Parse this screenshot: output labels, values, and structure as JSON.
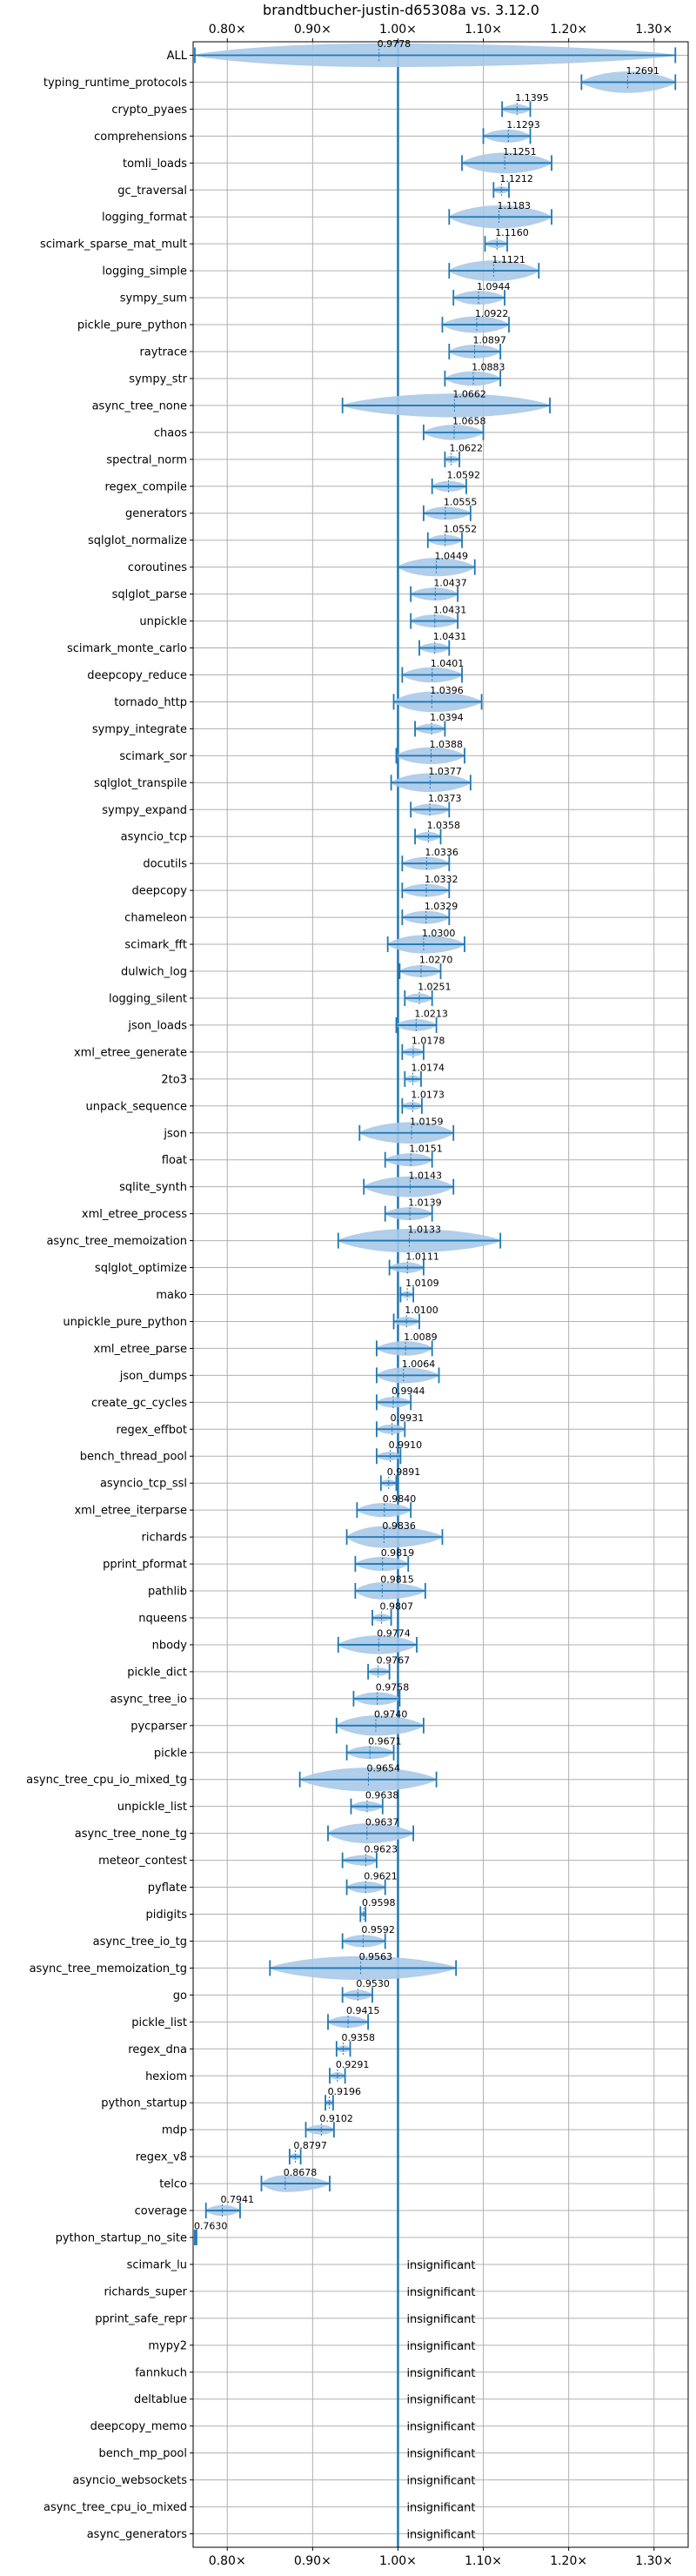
{
  "chart_data": {
    "type": "violin",
    "title": "brandtbucher-justin-d65308a vs. 3.12.0",
    "xlabel": "",
    "ylabel": "",
    "xlim": [
      0.76,
      1.34
    ],
    "x_ticks": [
      0.8,
      0.9,
      1.0,
      1.1,
      1.2,
      1.3
    ],
    "x_tick_labels": [
      "0.80×",
      "0.90×",
      "1.00×",
      "1.10×",
      "1.20×",
      "1.30×"
    ],
    "reference_line": 1.0,
    "grid": true,
    "colors": {
      "violin": "#a9c9e8",
      "whisker": "#1f77b4",
      "reference": "#1f77b4"
    },
    "insignificant_label": "insignificant",
    "benchmarks": [
      {
        "name": "ALL",
        "median": 0.9778,
        "min": 0.762,
        "max": 1.325,
        "label": "0.9778"
      },
      {
        "name": "typing_runtime_protocols",
        "median": 1.2691,
        "min": 1.215,
        "max": 1.325,
        "label": "1.2691"
      },
      {
        "name": "crypto_pyaes",
        "median": 1.1395,
        "min": 1.122,
        "max": 1.155,
        "label": "1.1395"
      },
      {
        "name": "comprehensions",
        "median": 1.1293,
        "min": 1.1,
        "max": 1.155,
        "label": "1.1293"
      },
      {
        "name": "tomli_loads",
        "median": 1.1251,
        "min": 1.075,
        "max": 1.18,
        "label": "1.1251"
      },
      {
        "name": "gc_traversal",
        "median": 1.1212,
        "min": 1.112,
        "max": 1.13,
        "label": "1.1212"
      },
      {
        "name": "logging_format",
        "median": 1.1183,
        "min": 1.06,
        "max": 1.18,
        "label": "1.1183"
      },
      {
        "name": "scimark_sparse_mat_mult",
        "median": 1.116,
        "min": 1.102,
        "max": 1.128,
        "label": "1.1160"
      },
      {
        "name": "logging_simple",
        "median": 1.1121,
        "min": 1.06,
        "max": 1.165,
        "label": "1.1121"
      },
      {
        "name": "sympy_sum",
        "median": 1.0944,
        "min": 1.065,
        "max": 1.125,
        "label": "1.0944"
      },
      {
        "name": "pickle_pure_python",
        "median": 1.0922,
        "min": 1.052,
        "max": 1.13,
        "label": "1.0922"
      },
      {
        "name": "raytrace",
        "median": 1.0897,
        "min": 1.06,
        "max": 1.12,
        "label": "1.0897"
      },
      {
        "name": "sympy_str",
        "median": 1.0883,
        "min": 1.055,
        "max": 1.12,
        "label": "1.0883"
      },
      {
        "name": "async_tree_none",
        "median": 1.0662,
        "min": 0.935,
        "max": 1.178,
        "label": "1.0662"
      },
      {
        "name": "chaos",
        "median": 1.0658,
        "min": 1.03,
        "max": 1.1,
        "label": "1.0658"
      },
      {
        "name": "spectral_norm",
        "median": 1.0622,
        "min": 1.055,
        "max": 1.072,
        "label": "1.0622"
      },
      {
        "name": "regex_compile",
        "median": 1.0592,
        "min": 1.04,
        "max": 1.08,
        "label": "1.0592"
      },
      {
        "name": "generators",
        "median": 1.0555,
        "min": 1.03,
        "max": 1.085,
        "label": "1.0555"
      },
      {
        "name": "sqlglot_normalize",
        "median": 1.0552,
        "min": 1.035,
        "max": 1.075,
        "label": "1.0552"
      },
      {
        "name": "coroutines",
        "median": 1.0449,
        "min": 1.0,
        "max": 1.09,
        "label": "1.0449"
      },
      {
        "name": "sqlglot_parse",
        "median": 1.0437,
        "min": 1.015,
        "max": 1.07,
        "label": "1.0437"
      },
      {
        "name": "unpickle",
        "median": 1.0431,
        "min": 1.015,
        "max": 1.07,
        "label": "1.0431"
      },
      {
        "name": "scimark_monte_carlo",
        "median": 1.0431,
        "min": 1.025,
        "max": 1.06,
        "label": "1.0431"
      },
      {
        "name": "deepcopy_reduce",
        "median": 1.0401,
        "min": 1.005,
        "max": 1.075,
        "label": "1.0401"
      },
      {
        "name": "tornado_http",
        "median": 1.0396,
        "min": 0.995,
        "max": 1.098,
        "label": "1.0396"
      },
      {
        "name": "sympy_integrate",
        "median": 1.0394,
        "min": 1.02,
        "max": 1.055,
        "label": "1.0394"
      },
      {
        "name": "scimark_sor",
        "median": 1.0388,
        "min": 0.998,
        "max": 1.078,
        "label": "1.0388"
      },
      {
        "name": "sqlglot_transpile",
        "median": 1.0377,
        "min": 0.992,
        "max": 1.085,
        "label": "1.0377"
      },
      {
        "name": "sympy_expand",
        "median": 1.0373,
        "min": 1.015,
        "max": 1.06,
        "label": "1.0373"
      },
      {
        "name": "asyncio_tcp",
        "median": 1.0358,
        "min": 1.02,
        "max": 1.05,
        "label": "1.0358"
      },
      {
        "name": "docutils",
        "median": 1.0336,
        "min": 1.005,
        "max": 1.06,
        "label": "1.0336"
      },
      {
        "name": "deepcopy",
        "median": 1.0332,
        "min": 1.005,
        "max": 1.06,
        "label": "1.0332"
      },
      {
        "name": "chameleon",
        "median": 1.0329,
        "min": 1.005,
        "max": 1.06,
        "label": "1.0329"
      },
      {
        "name": "scimark_fft",
        "median": 1.03,
        "min": 0.988,
        "max": 1.078,
        "label": "1.0300"
      },
      {
        "name": "dulwich_log",
        "median": 1.027,
        "min": 1.002,
        "max": 1.05,
        "label": "1.0270"
      },
      {
        "name": "logging_silent",
        "median": 1.0251,
        "min": 1.008,
        "max": 1.04,
        "label": "1.0251"
      },
      {
        "name": "json_loads",
        "median": 1.0213,
        "min": 0.998,
        "max": 1.045,
        "label": "1.0213"
      },
      {
        "name": "xml_etree_generate",
        "median": 1.0178,
        "min": 1.005,
        "max": 1.03,
        "label": "1.0178"
      },
      {
        "name": "2to3",
        "median": 1.0174,
        "min": 1.008,
        "max": 1.027,
        "label": "1.0174"
      },
      {
        "name": "unpack_sequence",
        "median": 1.0173,
        "min": 1.005,
        "max": 1.028,
        "label": "1.0173"
      },
      {
        "name": "json",
        "median": 1.0159,
        "min": 0.955,
        "max": 1.065,
        "label": "1.0159"
      },
      {
        "name": "float",
        "median": 1.0151,
        "min": 0.985,
        "max": 1.04,
        "label": "1.0151"
      },
      {
        "name": "sqlite_synth",
        "median": 1.0143,
        "min": 0.96,
        "max": 1.065,
        "label": "1.0143"
      },
      {
        "name": "xml_etree_process",
        "median": 1.0139,
        "min": 0.985,
        "max": 1.04,
        "label": "1.0139"
      },
      {
        "name": "async_tree_memoization",
        "median": 1.0133,
        "min": 0.93,
        "max": 1.12,
        "label": "1.0133"
      },
      {
        "name": "sqlglot_optimize",
        "median": 1.0111,
        "min": 0.99,
        "max": 1.03,
        "label": "1.0111"
      },
      {
        "name": "mako",
        "median": 1.0109,
        "min": 1.003,
        "max": 1.018,
        "label": "1.0109"
      },
      {
        "name": "unpickle_pure_python",
        "median": 1.01,
        "min": 0.995,
        "max": 1.025,
        "label": "1.0100"
      },
      {
        "name": "xml_etree_parse",
        "median": 1.0089,
        "min": 0.975,
        "max": 1.04,
        "label": "1.0089"
      },
      {
        "name": "json_dumps",
        "median": 1.0064,
        "min": 0.975,
        "max": 1.048,
        "label": "1.0064"
      },
      {
        "name": "create_gc_cycles",
        "median": 0.9944,
        "min": 0.975,
        "max": 1.015,
        "label": "0.9944"
      },
      {
        "name": "regex_effbot",
        "median": 0.9931,
        "min": 0.975,
        "max": 1.008,
        "label": "0.9931"
      },
      {
        "name": "bench_thread_pool",
        "median": 0.991,
        "min": 0.975,
        "max": 1.003,
        "label": "0.9910"
      },
      {
        "name": "asyncio_tcp_ssl",
        "median": 0.9891,
        "min": 0.98,
        "max": 0.998,
        "label": "0.9891"
      },
      {
        "name": "xml_etree_iterparse",
        "median": 0.984,
        "min": 0.952,
        "max": 1.015,
        "label": "0.9840"
      },
      {
        "name": "richards",
        "median": 0.9836,
        "min": 0.94,
        "max": 1.052,
        "label": "0.9836"
      },
      {
        "name": "pprint_pformat",
        "median": 0.9819,
        "min": 0.95,
        "max": 1.012,
        "label": "0.9819"
      },
      {
        "name": "pathlib",
        "median": 0.9815,
        "min": 0.95,
        "max": 1.032,
        "label": "0.9815"
      },
      {
        "name": "nqueens",
        "median": 0.9807,
        "min": 0.97,
        "max": 0.992,
        "label": "0.9807"
      },
      {
        "name": "nbody",
        "median": 0.9774,
        "min": 0.93,
        "max": 1.022,
        "label": "0.9774"
      },
      {
        "name": "pickle_dict",
        "median": 0.9767,
        "min": 0.965,
        "max": 0.99,
        "label": "0.9767"
      },
      {
        "name": "async_tree_io",
        "median": 0.9758,
        "min": 0.948,
        "max": 1.002,
        "label": "0.9758"
      },
      {
        "name": "pycparser",
        "median": 0.974,
        "min": 0.928,
        "max": 1.03,
        "label": "0.9740"
      },
      {
        "name": "pickle",
        "median": 0.9671,
        "min": 0.94,
        "max": 0.995,
        "label": "0.9671"
      },
      {
        "name": "async_tree_cpu_io_mixed_tg",
        "median": 0.9654,
        "min": 0.885,
        "max": 1.045,
        "label": "0.9654"
      },
      {
        "name": "unpickle_list",
        "median": 0.9638,
        "min": 0.945,
        "max": 0.982,
        "label": "0.9638"
      },
      {
        "name": "async_tree_none_tg",
        "median": 0.9637,
        "min": 0.918,
        "max": 1.018,
        "label": "0.9637"
      },
      {
        "name": "meteor_contest",
        "median": 0.9623,
        "min": 0.935,
        "max": 0.975,
        "label": "0.9623"
      },
      {
        "name": "pyflate",
        "median": 0.9621,
        "min": 0.94,
        "max": 0.985,
        "label": "0.9621"
      },
      {
        "name": "pidigits",
        "median": 0.9598,
        "min": 0.956,
        "max": 0.962,
        "label": "0.9598"
      },
      {
        "name": "async_tree_io_tg",
        "median": 0.9592,
        "min": 0.935,
        "max": 0.985,
        "label": "0.9592"
      },
      {
        "name": "async_tree_memoization_tg",
        "median": 0.9563,
        "min": 0.85,
        "max": 1.068,
        "label": "0.9563"
      },
      {
        "name": "go",
        "median": 0.953,
        "min": 0.935,
        "max": 0.97,
        "label": "0.9530"
      },
      {
        "name": "pickle_list",
        "median": 0.9415,
        "min": 0.918,
        "max": 0.965,
        "label": "0.9415"
      },
      {
        "name": "regex_dna",
        "median": 0.9358,
        "min": 0.928,
        "max": 0.944,
        "label": "0.9358"
      },
      {
        "name": "hexiom",
        "median": 0.9291,
        "min": 0.92,
        "max": 0.938,
        "label": "0.9291"
      },
      {
        "name": "python_startup",
        "median": 0.9196,
        "min": 0.915,
        "max": 0.924,
        "label": "0.9196"
      },
      {
        "name": "mdp",
        "median": 0.9102,
        "min": 0.892,
        "max": 0.925,
        "label": "0.9102"
      },
      {
        "name": "regex_v8",
        "median": 0.8797,
        "min": 0.873,
        "max": 0.886,
        "label": "0.8797"
      },
      {
        "name": "telco",
        "median": 0.8678,
        "min": 0.84,
        "max": 0.92,
        "label": "0.8678"
      },
      {
        "name": "coverage",
        "median": 0.7941,
        "min": 0.775,
        "max": 0.815,
        "label": "0.7941"
      },
      {
        "name": "python_startup_no_site",
        "median": 0.763,
        "min": 0.762,
        "max": 0.764,
        "label": "0.7630"
      },
      {
        "name": "scimark_lu",
        "median": null,
        "label": null
      },
      {
        "name": "richards_super",
        "median": null,
        "label": null
      },
      {
        "name": "pprint_safe_repr",
        "median": null,
        "label": null
      },
      {
        "name": "mypy2",
        "median": null,
        "label": null
      },
      {
        "name": "fannkuch",
        "median": null,
        "label": null
      },
      {
        "name": "deltablue",
        "median": null,
        "label": null
      },
      {
        "name": "deepcopy_memo",
        "median": null,
        "label": null
      },
      {
        "name": "bench_mp_pool",
        "median": null,
        "label": null
      },
      {
        "name": "asyncio_websockets",
        "median": null,
        "label": null
      },
      {
        "name": "async_tree_cpu_io_mixed",
        "median": null,
        "label": null
      },
      {
        "name": "async_generators",
        "median": null,
        "label": null
      }
    ]
  }
}
